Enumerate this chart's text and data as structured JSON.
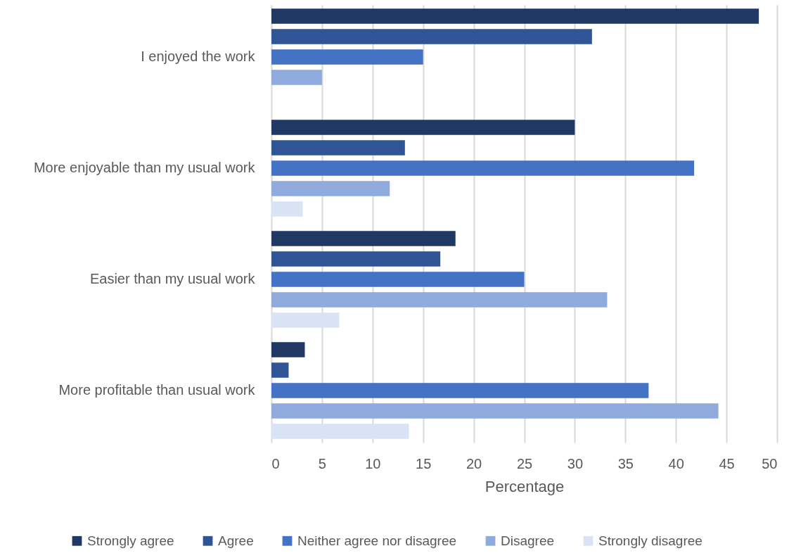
{
  "chart_data": {
    "type": "bar",
    "orientation": "horizontal",
    "xlabel": "Percentage",
    "categories": [
      "I enjoyed the work",
      "More enjoyable than my usual work",
      "Easier than my usual work",
      "More profitable than usual work"
    ],
    "series": [
      {
        "name": "Strongly agree",
        "color": "#203864",
        "values": [
          48.2,
          30.0,
          18.2,
          3.3
        ]
      },
      {
        "name": "Agree",
        "color": "#2f5597",
        "values": [
          31.7,
          13.2,
          16.7,
          1.7
        ]
      },
      {
        "name": "Neither agree nor disagree",
        "color": "#4472c4",
        "values": [
          15.0,
          41.8,
          25.0,
          37.3
        ]
      },
      {
        "name": "Disagree",
        "color": "#8faadc",
        "values": [
          5.0,
          11.7,
          33.2,
          44.2
        ]
      },
      {
        "name": "Strongly disagree",
        "color": "#dae3f3",
        "values": [
          null,
          3.1,
          6.7,
          13.6
        ]
      }
    ],
    "xlim": [
      0,
      50
    ],
    "xticks": [
      0,
      5,
      10,
      15,
      20,
      25,
      30,
      35,
      40,
      45,
      50
    ],
    "grid": "x",
    "legend": "bottom"
  }
}
